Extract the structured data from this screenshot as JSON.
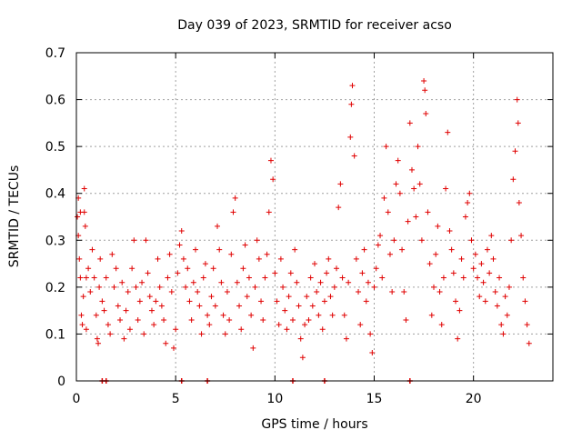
{
  "chart_data": {
    "type": "scatter",
    "title": "Day 039 of 2023, SRMTID for receiver acso",
    "xlabel": "GPS time / hours",
    "ylabel": "SRMTID / TECUs",
    "xlim": [
      0,
      24.0
    ],
    "ylim": [
      0,
      0.7
    ],
    "x_ticks": [
      0,
      5,
      10,
      15,
      20
    ],
    "x_tick_labels": [
      "0",
      "5",
      "10",
      "15",
      "20"
    ],
    "y_ticks": [
      0,
      0.1,
      0.2,
      0.3,
      0.4,
      0.5,
      0.6,
      0.7
    ],
    "y_tick_labels": [
      "0",
      "0.1",
      "0.2",
      "0.3",
      "0.4",
      "0.5",
      "0.6",
      "0.7"
    ],
    "grid": true,
    "marker": "+",
    "marker_color": "#e00000",
    "series": [
      {
        "name": "SRMTID",
        "points": [
          [
            0.05,
            0.35
          ],
          [
            0.1,
            0.31
          ],
          [
            0.1,
            0.39
          ],
          [
            0.15,
            0.26
          ],
          [
            0.2,
            0.36
          ],
          [
            0.2,
            0.22
          ],
          [
            0.25,
            0.14
          ],
          [
            0.3,
            0.12
          ],
          [
            0.35,
            0.18
          ],
          [
            0.4,
            0.41
          ],
          [
            0.4,
            0.36
          ],
          [
            0.45,
            0.33
          ],
          [
            0.5,
            0.22
          ],
          [
            0.5,
            0.11
          ],
          [
            0.6,
            0.24
          ],
          [
            0.7,
            0.19
          ],
          [
            0.8,
            0.28
          ],
          [
            0.9,
            0.22
          ],
          [
            1.0,
            0.14
          ],
          [
            1.05,
            0.09
          ],
          [
            1.1,
            0.08
          ],
          [
            1.15,
            0.2
          ],
          [
            1.2,
            0.26
          ],
          [
            1.3,
            0.17
          ],
          [
            1.4,
            0.15
          ],
          [
            1.5,
            0.22
          ],
          [
            1.6,
            0.12
          ],
          [
            1.7,
            0.1
          ],
          [
            1.8,
            0.27
          ],
          [
            1.9,
            0.2
          ],
          [
            2.0,
            0.24
          ],
          [
            2.1,
            0.16
          ],
          [
            2.2,
            0.13
          ],
          [
            2.3,
            0.21
          ],
          [
            2.4,
            0.09
          ],
          [
            2.5,
            0.15
          ],
          [
            2.6,
            0.19
          ],
          [
            2.7,
            0.11
          ],
          [
            2.8,
            0.24
          ],
          [
            2.9,
            0.3
          ],
          [
            3.0,
            0.2
          ],
          [
            3.1,
            0.13
          ],
          [
            3.2,
            0.17
          ],
          [
            3.3,
            0.21
          ],
          [
            3.4,
            0.1
          ],
          [
            3.5,
            0.3
          ],
          [
            3.6,
            0.23
          ],
          [
            3.7,
            0.18
          ],
          [
            3.8,
            0.15
          ],
          [
            3.9,
            0.12
          ],
          [
            4.0,
            0.17
          ],
          [
            4.1,
            0.26
          ],
          [
            4.2,
            0.2
          ],
          [
            4.3,
            0.16
          ],
          [
            4.4,
            0.13
          ],
          [
            4.5,
            0.08
          ],
          [
            4.6,
            0.22
          ],
          [
            4.7,
            0.27
          ],
          [
            4.8,
            0.19
          ],
          [
            4.9,
            0.07
          ],
          [
            5.0,
            0.11
          ],
          [
            5.1,
            0.23
          ],
          [
            5.2,
            0.29
          ],
          [
            5.3,
            0.32
          ],
          [
            5.4,
            0.26
          ],
          [
            5.5,
            0.2
          ],
          [
            5.6,
            0.24
          ],
          [
            5.7,
            0.17
          ],
          [
            5.8,
            0.13
          ],
          [
            5.9,
            0.21
          ],
          [
            6.0,
            0.28
          ],
          [
            6.1,
            0.19
          ],
          [
            6.2,
            0.16
          ],
          [
            6.3,
            0.1
          ],
          [
            6.4,
            0.22
          ],
          [
            6.5,
            0.25
          ],
          [
            6.6,
            0.14
          ],
          [
            6.7,
            0.12
          ],
          [
            6.8,
            0.18
          ],
          [
            6.9,
            0.24
          ],
          [
            7.0,
            0.16
          ],
          [
            7.1,
            0.33
          ],
          [
            7.2,
            0.28
          ],
          [
            7.3,
            0.21
          ],
          [
            7.4,
            0.14
          ],
          [
            7.5,
            0.1
          ],
          [
            7.6,
            0.19
          ],
          [
            7.7,
            0.13
          ],
          [
            7.8,
            0.27
          ],
          [
            7.9,
            0.36
          ],
          [
            8.0,
            0.39
          ],
          [
            8.1,
            0.21
          ],
          [
            8.2,
            0.16
          ],
          [
            8.3,
            0.11
          ],
          [
            8.4,
            0.24
          ],
          [
            8.5,
            0.29
          ],
          [
            8.6,
            0.18
          ],
          [
            8.7,
            0.22
          ],
          [
            8.8,
            0.14
          ],
          [
            8.9,
            0.07
          ],
          [
            9.0,
            0.2
          ],
          [
            9.1,
            0.3
          ],
          [
            9.2,
            0.26
          ],
          [
            9.3,
            0.17
          ],
          [
            9.4,
            0.13
          ],
          [
            9.5,
            0.22
          ],
          [
            9.6,
            0.27
          ],
          [
            9.7,
            0.36
          ],
          [
            9.8,
            0.47
          ],
          [
            9.9,
            0.43
          ],
          [
            10.0,
            0.23
          ],
          [
            10.1,
            0.17
          ],
          [
            10.2,
            0.12
          ],
          [
            10.3,
            0.26
          ],
          [
            10.4,
            0.2
          ],
          [
            10.5,
            0.15
          ],
          [
            10.6,
            0.11
          ],
          [
            10.7,
            0.18
          ],
          [
            10.8,
            0.23
          ],
          [
            10.9,
            0.13
          ],
          [
            11.0,
            0.28
          ],
          [
            11.1,
            0.21
          ],
          [
            11.2,
            0.16
          ],
          [
            11.3,
            0.09
          ],
          [
            11.4,
            0.05
          ],
          [
            11.5,
            0.12
          ],
          [
            11.6,
            0.18
          ],
          [
            11.7,
            0.13
          ],
          [
            11.8,
            0.22
          ],
          [
            11.9,
            0.16
          ],
          [
            12.0,
            0.25
          ],
          [
            12.1,
            0.19
          ],
          [
            12.2,
            0.14
          ],
          [
            12.3,
            0.21
          ],
          [
            12.4,
            0.11
          ],
          [
            12.5,
            0.17
          ],
          [
            12.6,
            0.23
          ],
          [
            12.7,
            0.26
          ],
          [
            12.8,
            0.18
          ],
          [
            12.9,
            0.14
          ],
          [
            13.0,
            0.2
          ],
          [
            13.1,
            0.24
          ],
          [
            13.2,
            0.37
          ],
          [
            13.3,
            0.42
          ],
          [
            13.4,
            0.22
          ],
          [
            13.5,
            0.14
          ],
          [
            13.6,
            0.09
          ],
          [
            13.7,
            0.21
          ],
          [
            13.8,
            0.52
          ],
          [
            13.85,
            0.59
          ],
          [
            13.9,
            0.63
          ],
          [
            14.0,
            0.48
          ],
          [
            14.1,
            0.26
          ],
          [
            14.2,
            0.19
          ],
          [
            14.3,
            0.12
          ],
          [
            14.4,
            0.23
          ],
          [
            14.5,
            0.28
          ],
          [
            14.6,
            0.17
          ],
          [
            14.7,
            0.21
          ],
          [
            14.8,
            0.1
          ],
          [
            14.9,
            0.06
          ],
          [
            15.0,
            0.2
          ],
          [
            15.1,
            0.24
          ],
          [
            15.2,
            0.29
          ],
          [
            15.3,
            0.31
          ],
          [
            15.4,
            0.22
          ],
          [
            15.5,
            0.39
          ],
          [
            15.6,
            0.5
          ],
          [
            15.7,
            0.36
          ],
          [
            15.8,
            0.27
          ],
          [
            15.9,
            0.19
          ],
          [
            16.0,
            0.3
          ],
          [
            16.1,
            0.42
          ],
          [
            16.2,
            0.47
          ],
          [
            16.3,
            0.4
          ],
          [
            16.4,
            0.28
          ],
          [
            16.5,
            0.19
          ],
          [
            16.6,
            0.13
          ],
          [
            16.7,
            0.34
          ],
          [
            16.8,
            0.55
          ],
          [
            16.9,
            0.45
          ],
          [
            17.0,
            0.41
          ],
          [
            17.1,
            0.35
          ],
          [
            17.2,
            0.5
          ],
          [
            17.3,
            0.42
          ],
          [
            17.4,
            0.3
          ],
          [
            17.5,
            0.64
          ],
          [
            17.55,
            0.62
          ],
          [
            17.6,
            0.57
          ],
          [
            17.7,
            0.36
          ],
          [
            17.8,
            0.25
          ],
          [
            17.9,
            0.14
          ],
          [
            18.0,
            0.2
          ],
          [
            18.1,
            0.27
          ],
          [
            18.2,
            0.33
          ],
          [
            18.3,
            0.19
          ],
          [
            18.4,
            0.12
          ],
          [
            18.5,
            0.22
          ],
          [
            18.6,
            0.41
          ],
          [
            18.7,
            0.53
          ],
          [
            18.8,
            0.32
          ],
          [
            18.9,
            0.28
          ],
          [
            19.0,
            0.23
          ],
          [
            19.1,
            0.17
          ],
          [
            19.2,
            0.09
          ],
          [
            19.3,
            0.15
          ],
          [
            19.4,
            0.26
          ],
          [
            19.5,
            0.22
          ],
          [
            19.6,
            0.35
          ],
          [
            19.7,
            0.38
          ],
          [
            19.8,
            0.4
          ],
          [
            19.9,
            0.3
          ],
          [
            20.0,
            0.24
          ],
          [
            20.1,
            0.27
          ],
          [
            20.2,
            0.22
          ],
          [
            20.3,
            0.18
          ],
          [
            20.4,
            0.25
          ],
          [
            20.5,
            0.21
          ],
          [
            20.6,
            0.17
          ],
          [
            20.7,
            0.28
          ],
          [
            20.8,
            0.23
          ],
          [
            20.9,
            0.31
          ],
          [
            21.0,
            0.26
          ],
          [
            21.1,
            0.19
          ],
          [
            21.2,
            0.16
          ],
          [
            21.3,
            0.22
          ],
          [
            21.4,
            0.12
          ],
          [
            21.5,
            0.1
          ],
          [
            21.6,
            0.18
          ],
          [
            21.7,
            0.14
          ],
          [
            21.8,
            0.2
          ],
          [
            21.9,
            0.3
          ],
          [
            22.0,
            0.43
          ],
          [
            22.1,
            0.49
          ],
          [
            22.2,
            0.6
          ],
          [
            22.25,
            0.55
          ],
          [
            22.3,
            0.38
          ],
          [
            22.4,
            0.31
          ],
          [
            22.5,
            0.22
          ],
          [
            22.6,
            0.17
          ],
          [
            22.7,
            0.12
          ],
          [
            22.8,
            0.08
          ]
        ]
      }
    ],
    "data_gaps_at_x_axis": [
      1.3,
      1.5,
      5.3,
      6.6,
      10.9,
      12.5,
      16.8
    ]
  }
}
